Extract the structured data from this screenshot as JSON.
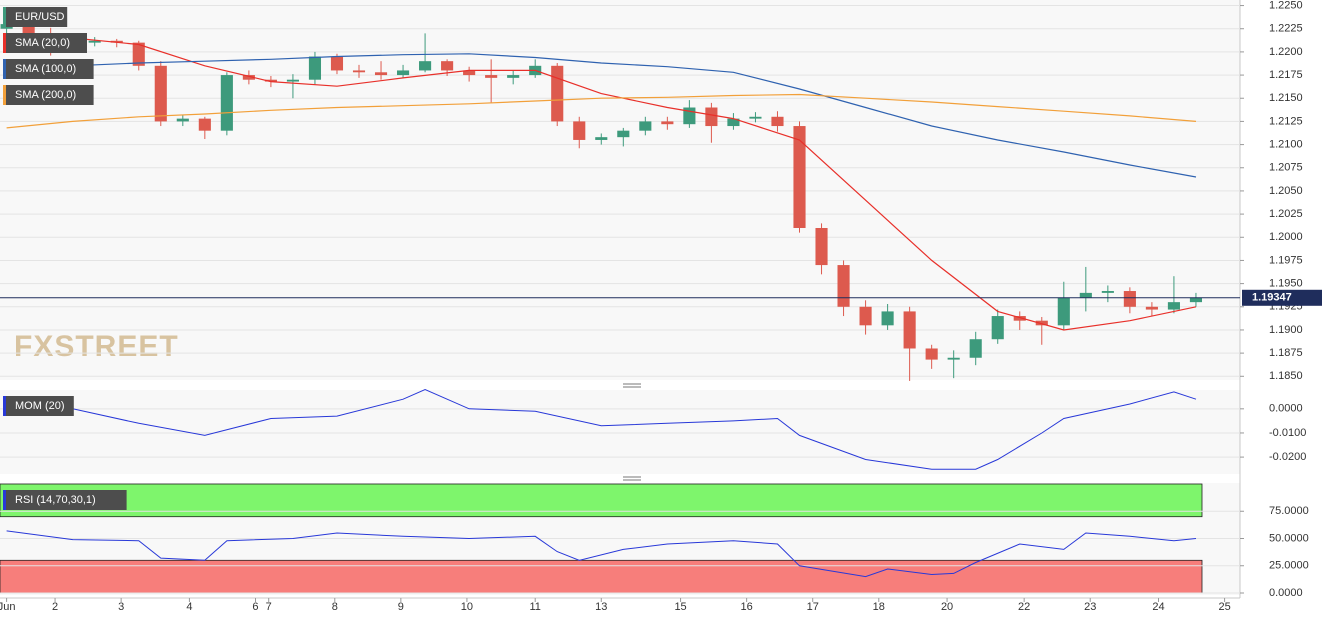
{
  "chart_data": [
    {
      "type": "candlestick",
      "title": "EUR/USD",
      "watermark": "FXSTREET",
      "x": [
        0,
        1,
        2,
        3,
        4,
        5,
        6,
        7,
        8,
        9,
        10,
        11,
        12,
        13,
        14,
        15,
        16,
        17,
        18,
        19,
        20,
        21,
        22,
        23,
        24,
        25,
        26,
        27,
        28,
        29,
        30,
        31,
        32,
        33,
        34,
        35,
        36,
        37,
        38,
        39,
        40,
        41,
        42,
        43,
        44,
        45,
        46,
        47,
        48,
        49,
        50,
        51,
        52,
        53,
        54
      ],
      "open": [
        1.2225,
        1.223,
        1.222,
        1.2205,
        1.221,
        1.2212,
        1.221,
        1.2185,
        1.2125,
        1.2128,
        1.2115,
        1.2175,
        1.217,
        1.2168,
        1.217,
        1.2195,
        1.218,
        1.2178,
        1.2175,
        1.218,
        1.219,
        1.218,
        1.2175,
        1.2172,
        1.2175,
        1.2185,
        1.2125,
        1.2105,
        1.2108,
        1.2115,
        1.2125,
        1.2122,
        1.214,
        1.212,
        1.2128,
        1.213,
        1.212,
        1.201,
        1.197,
        1.1925,
        1.1905,
        1.192,
        1.188,
        1.1868,
        1.187,
        1.189,
        1.1915,
        1.191,
        1.1905,
        1.1935,
        1.194,
        1.1942,
        1.1925,
        1.1922,
        1.193
      ],
      "high": [
        1.2245,
        1.2235,
        1.2226,
        1.2218,
        1.2216,
        1.2214,
        1.2212,
        1.219,
        1.2132,
        1.213,
        1.2178,
        1.218,
        1.2174,
        1.2176,
        1.22,
        1.2198,
        1.2186,
        1.219,
        1.2186,
        1.222,
        1.2192,
        1.2184,
        1.2192,
        1.218,
        1.2192,
        1.2188,
        1.213,
        1.2112,
        1.2118,
        1.213,
        1.213,
        1.2148,
        1.2145,
        1.2134,
        1.2135,
        1.2136,
        1.2125,
        1.2015,
        1.1975,
        1.1932,
        1.1928,
        1.1925,
        1.1884,
        1.1878,
        1.1898,
        1.1922,
        1.192,
        1.1914,
        1.1952,
        1.1968,
        1.1948,
        1.1946,
        1.193,
        1.1958,
        1.194
      ],
      "low": [
        1.2218,
        1.2212,
        1.2196,
        1.22,
        1.2206,
        1.2205,
        1.218,
        1.212,
        1.212,
        1.2106,
        1.211,
        1.2165,
        1.2162,
        1.215,
        1.2165,
        1.2176,
        1.2172,
        1.217,
        1.2172,
        1.2178,
        1.2174,
        1.2168,
        1.2145,
        1.2165,
        1.2172,
        1.212,
        1.2096,
        1.21,
        1.2098,
        1.211,
        1.2116,
        1.2118,
        1.2102,
        1.2116,
        1.2124,
        1.2114,
        1.2005,
        1.196,
        1.1915,
        1.1895,
        1.19,
        1.1845,
        1.1858,
        1.1848,
        1.1862,
        1.1885,
        1.19,
        1.1884,
        1.19,
        1.192,
        1.193,
        1.1918,
        1.1915,
        1.1918,
        1.1925
      ],
      "close": [
        1.223,
        1.222,
        1.2205,
        1.221,
        1.2212,
        1.221,
        1.2185,
        1.2125,
        1.2128,
        1.2115,
        1.2175,
        1.217,
        1.2168,
        1.217,
        1.2195,
        1.218,
        1.2178,
        1.2175,
        1.218,
        1.219,
        1.218,
        1.2175,
        1.2172,
        1.2175,
        1.2185,
        1.2125,
        1.2105,
        1.2108,
        1.2115,
        1.2125,
        1.2122,
        1.214,
        1.212,
        1.2128,
        1.213,
        1.212,
        1.201,
        1.197,
        1.1925,
        1.1905,
        1.192,
        1.188,
        1.1868,
        1.187,
        1.189,
        1.1915,
        1.191,
        1.1905,
        1.1935,
        1.194,
        1.1942,
        1.1925,
        1.1922,
        1.193,
        1.19347
      ],
      "up_color": "#3d9a7c",
      "down_color": "#dd5a4e",
      "last_price": 1.19347,
      "series": [
        {
          "name": "SMA (20,0)",
          "color": "#e8302a",
          "x": [
            0,
            3,
            6,
            9,
            12,
            15,
            18,
            21,
            24,
            27,
            30,
            33,
            36,
            39,
            42,
            45,
            48,
            51,
            54
          ],
          "values": [
            1.22,
            1.2215,
            1.2208,
            1.2185,
            1.2168,
            1.2163,
            1.2172,
            1.218,
            1.218,
            1.2155,
            1.214,
            1.2128,
            1.2105,
            1.204,
            1.1975,
            1.192,
            1.19,
            1.191,
            1.1925
          ]
        },
        {
          "name": "SMA (100,0)",
          "color": "#2f62b0",
          "x": [
            0,
            3,
            6,
            9,
            12,
            15,
            18,
            21,
            24,
            27,
            30,
            33,
            36,
            39,
            42,
            45,
            48,
            51,
            54
          ],
          "values": [
            1.2182,
            1.2185,
            1.2188,
            1.219,
            1.2192,
            1.2195,
            1.2197,
            1.2198,
            1.2194,
            1.2188,
            1.2184,
            1.2178,
            1.216,
            1.214,
            1.212,
            1.2105,
            1.2092,
            1.2078,
            1.2065
          ]
        },
        {
          "name": "SMA (200,0)",
          "color": "#f2a03a",
          "x": [
            0,
            3,
            6,
            9,
            12,
            15,
            18,
            21,
            24,
            27,
            30,
            33,
            36,
            39,
            42,
            45,
            48,
            51,
            54
          ],
          "values": [
            1.2118,
            1.2125,
            1.213,
            1.2133,
            1.2137,
            1.214,
            1.2142,
            1.2144,
            1.2147,
            1.215,
            1.2151,
            1.2153,
            1.2154,
            1.215,
            1.2146,
            1.2141,
            1.2136,
            1.2131,
            1.2125
          ]
        }
      ],
      "xlim": [
        -0.3,
        56
      ],
      "ylim": [
        1.1846,
        1.2256
      ],
      "grid": true,
      "yticks": [
        {
          "value": 1.225,
          "label": "1.2250"
        },
        {
          "value": 1.2225,
          "label": "1.2225"
        },
        {
          "value": 1.22,
          "label": "1.2200"
        },
        {
          "value": 1.2175,
          "label": "1.2175"
        },
        {
          "value": 1.215,
          "label": "1.2150"
        },
        {
          "value": 1.2125,
          "label": "1.2125"
        },
        {
          "value": 1.21,
          "label": "1.2100"
        },
        {
          "value": 1.2075,
          "label": "1.2075"
        },
        {
          "value": 1.205,
          "label": "1.2050"
        },
        {
          "value": 1.2025,
          "label": "1.2025"
        },
        {
          "value": 1.2,
          "label": "1.2000"
        },
        {
          "value": 1.1975,
          "label": "1.1975"
        },
        {
          "value": 1.195,
          "label": "1.1950"
        },
        {
          "value": 1.1925,
          "label": "1.1925"
        },
        {
          "value": 1.19,
          "label": "1.1900"
        },
        {
          "value": 1.1875,
          "label": "1.1875"
        },
        {
          "value": 1.185,
          "label": "1.1850"
        }
      ]
    },
    {
      "type": "line",
      "series": [
        {
          "name": "MOM (20)",
          "color": "#2838d8",
          "x": [
            0,
            3,
            6,
            9,
            12,
            15,
            18,
            19,
            21,
            24,
            27,
            30,
            33,
            35,
            36,
            39,
            42,
            44,
            45,
            47,
            48,
            51,
            53,
            54
          ],
          "values": [
            0.004,
            0.0,
            -0.006,
            -0.011,
            -0.004,
            -0.003,
            0.004,
            0.008,
            0.0,
            -0.001,
            -0.007,
            -0.006,
            -0.005,
            -0.004,
            -0.011,
            -0.021,
            -0.025,
            -0.025,
            -0.021,
            -0.01,
            -0.004,
            0.002,
            0.007,
            0.004
          ]
        }
      ],
      "xlim": [
        -0.3,
        56
      ],
      "ylim": [
        -0.027,
        0.0078
      ],
      "grid": true,
      "yticks": [
        {
          "value": 0,
          "label": "0.0000"
        },
        {
          "value": -0.01,
          "label": "-0.0100"
        },
        {
          "value": -0.02,
          "label": "-0.0200"
        }
      ]
    },
    {
      "type": "line",
      "series": [
        {
          "name": "RSI (14,70,30,1)",
          "color": "#2838d8",
          "x": [
            0,
            3,
            6,
            7,
            9,
            10,
            13,
            15,
            18,
            21,
            24,
            25,
            26,
            28,
            30,
            33,
            35,
            36,
            39,
            40,
            42,
            43,
            44,
            46,
            48,
            49,
            51,
            53,
            54
          ],
          "values": [
            57,
            49,
            48,
            32,
            30,
            48,
            50,
            55,
            52,
            50,
            52,
            38,
            30,
            40,
            45,
            48,
            45,
            25,
            15,
            22,
            17,
            18,
            28,
            45,
            40,
            55,
            52,
            48,
            50
          ]
        }
      ],
      "bands": [
        {
          "from": 70,
          "to": 100,
          "color": "#7ef56c"
        },
        {
          "from": 0,
          "to": 30,
          "color": "#f77e7b"
        }
      ],
      "xlim": [
        -0.3,
        56
      ],
      "ylim": [
        0,
        100
      ],
      "grid": true,
      "yticks": [
        {
          "value": 75,
          "label": "75.0000"
        },
        {
          "value": 50,
          "label": "50.0000"
        },
        {
          "value": 25,
          "label": "25.0000"
        },
        {
          "value": 0,
          "label": "0.0000"
        }
      ],
      "xticks": [
        {
          "value": 0,
          "label": "Jun"
        },
        {
          "value": 2.2,
          "label": "2"
        },
        {
          "value": 5.2,
          "label": "3"
        },
        {
          "value": 8.3,
          "label": "4"
        },
        {
          "value": 11.3,
          "label": "6"
        },
        {
          "value": 11.9,
          "label": "7"
        },
        {
          "value": 14.9,
          "label": "8"
        },
        {
          "value": 17.9,
          "label": "9"
        },
        {
          "value": 20.9,
          "label": "10"
        },
        {
          "value": 24,
          "label": "11"
        },
        {
          "value": 27,
          "label": "13"
        },
        {
          "value": 30.6,
          "label": "15"
        },
        {
          "value": 33.6,
          "label": "16"
        },
        {
          "value": 36.6,
          "label": "17"
        },
        {
          "value": 39.6,
          "label": "18"
        },
        {
          "value": 42.7,
          "label": "20"
        },
        {
          "value": 46.2,
          "label": "22"
        },
        {
          "value": 49.2,
          "label": "23"
        },
        {
          "value": 52.3,
          "label": "24"
        },
        {
          "value": 55.3,
          "label": "25"
        }
      ]
    }
  ]
}
